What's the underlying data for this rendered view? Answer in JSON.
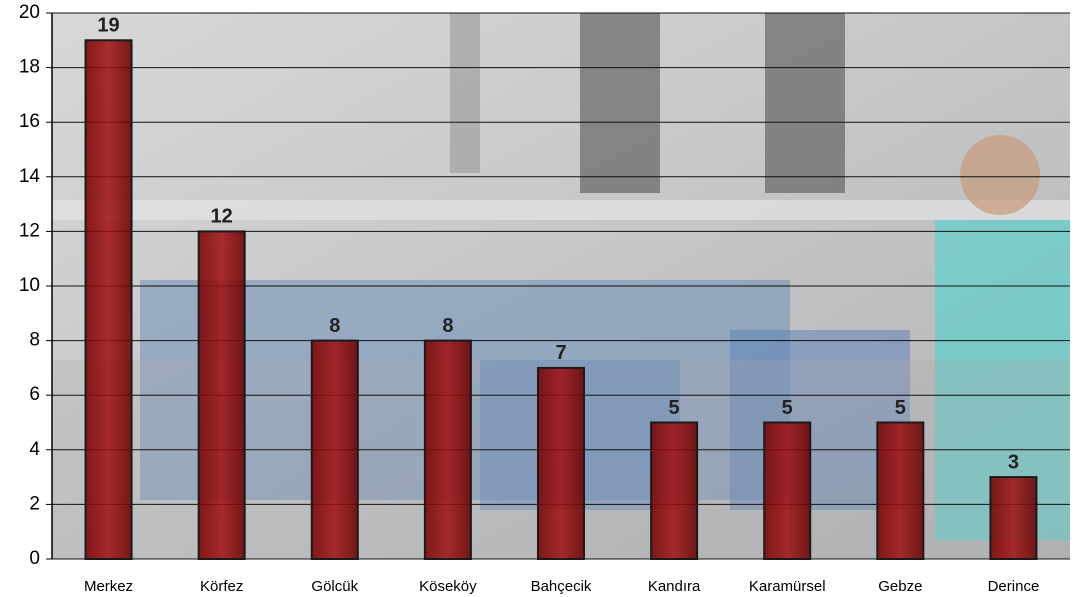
{
  "chart_data": {
    "type": "bar",
    "categories": [
      "Merkez",
      "Körfez",
      "Gölcük",
      "Köseköy",
      "Bahçecik",
      "Kandıra",
      "Karamürsel",
      "Gebze",
      "Derince"
    ],
    "values": [
      19,
      12,
      8,
      8,
      7,
      5,
      5,
      5,
      3
    ],
    "color": "#8b0a0a",
    "ylim": [
      0,
      20
    ],
    "yticks": [
      0,
      2,
      4,
      6,
      8,
      10,
      12,
      14,
      16,
      18,
      20
    ],
    "grid": true
  }
}
